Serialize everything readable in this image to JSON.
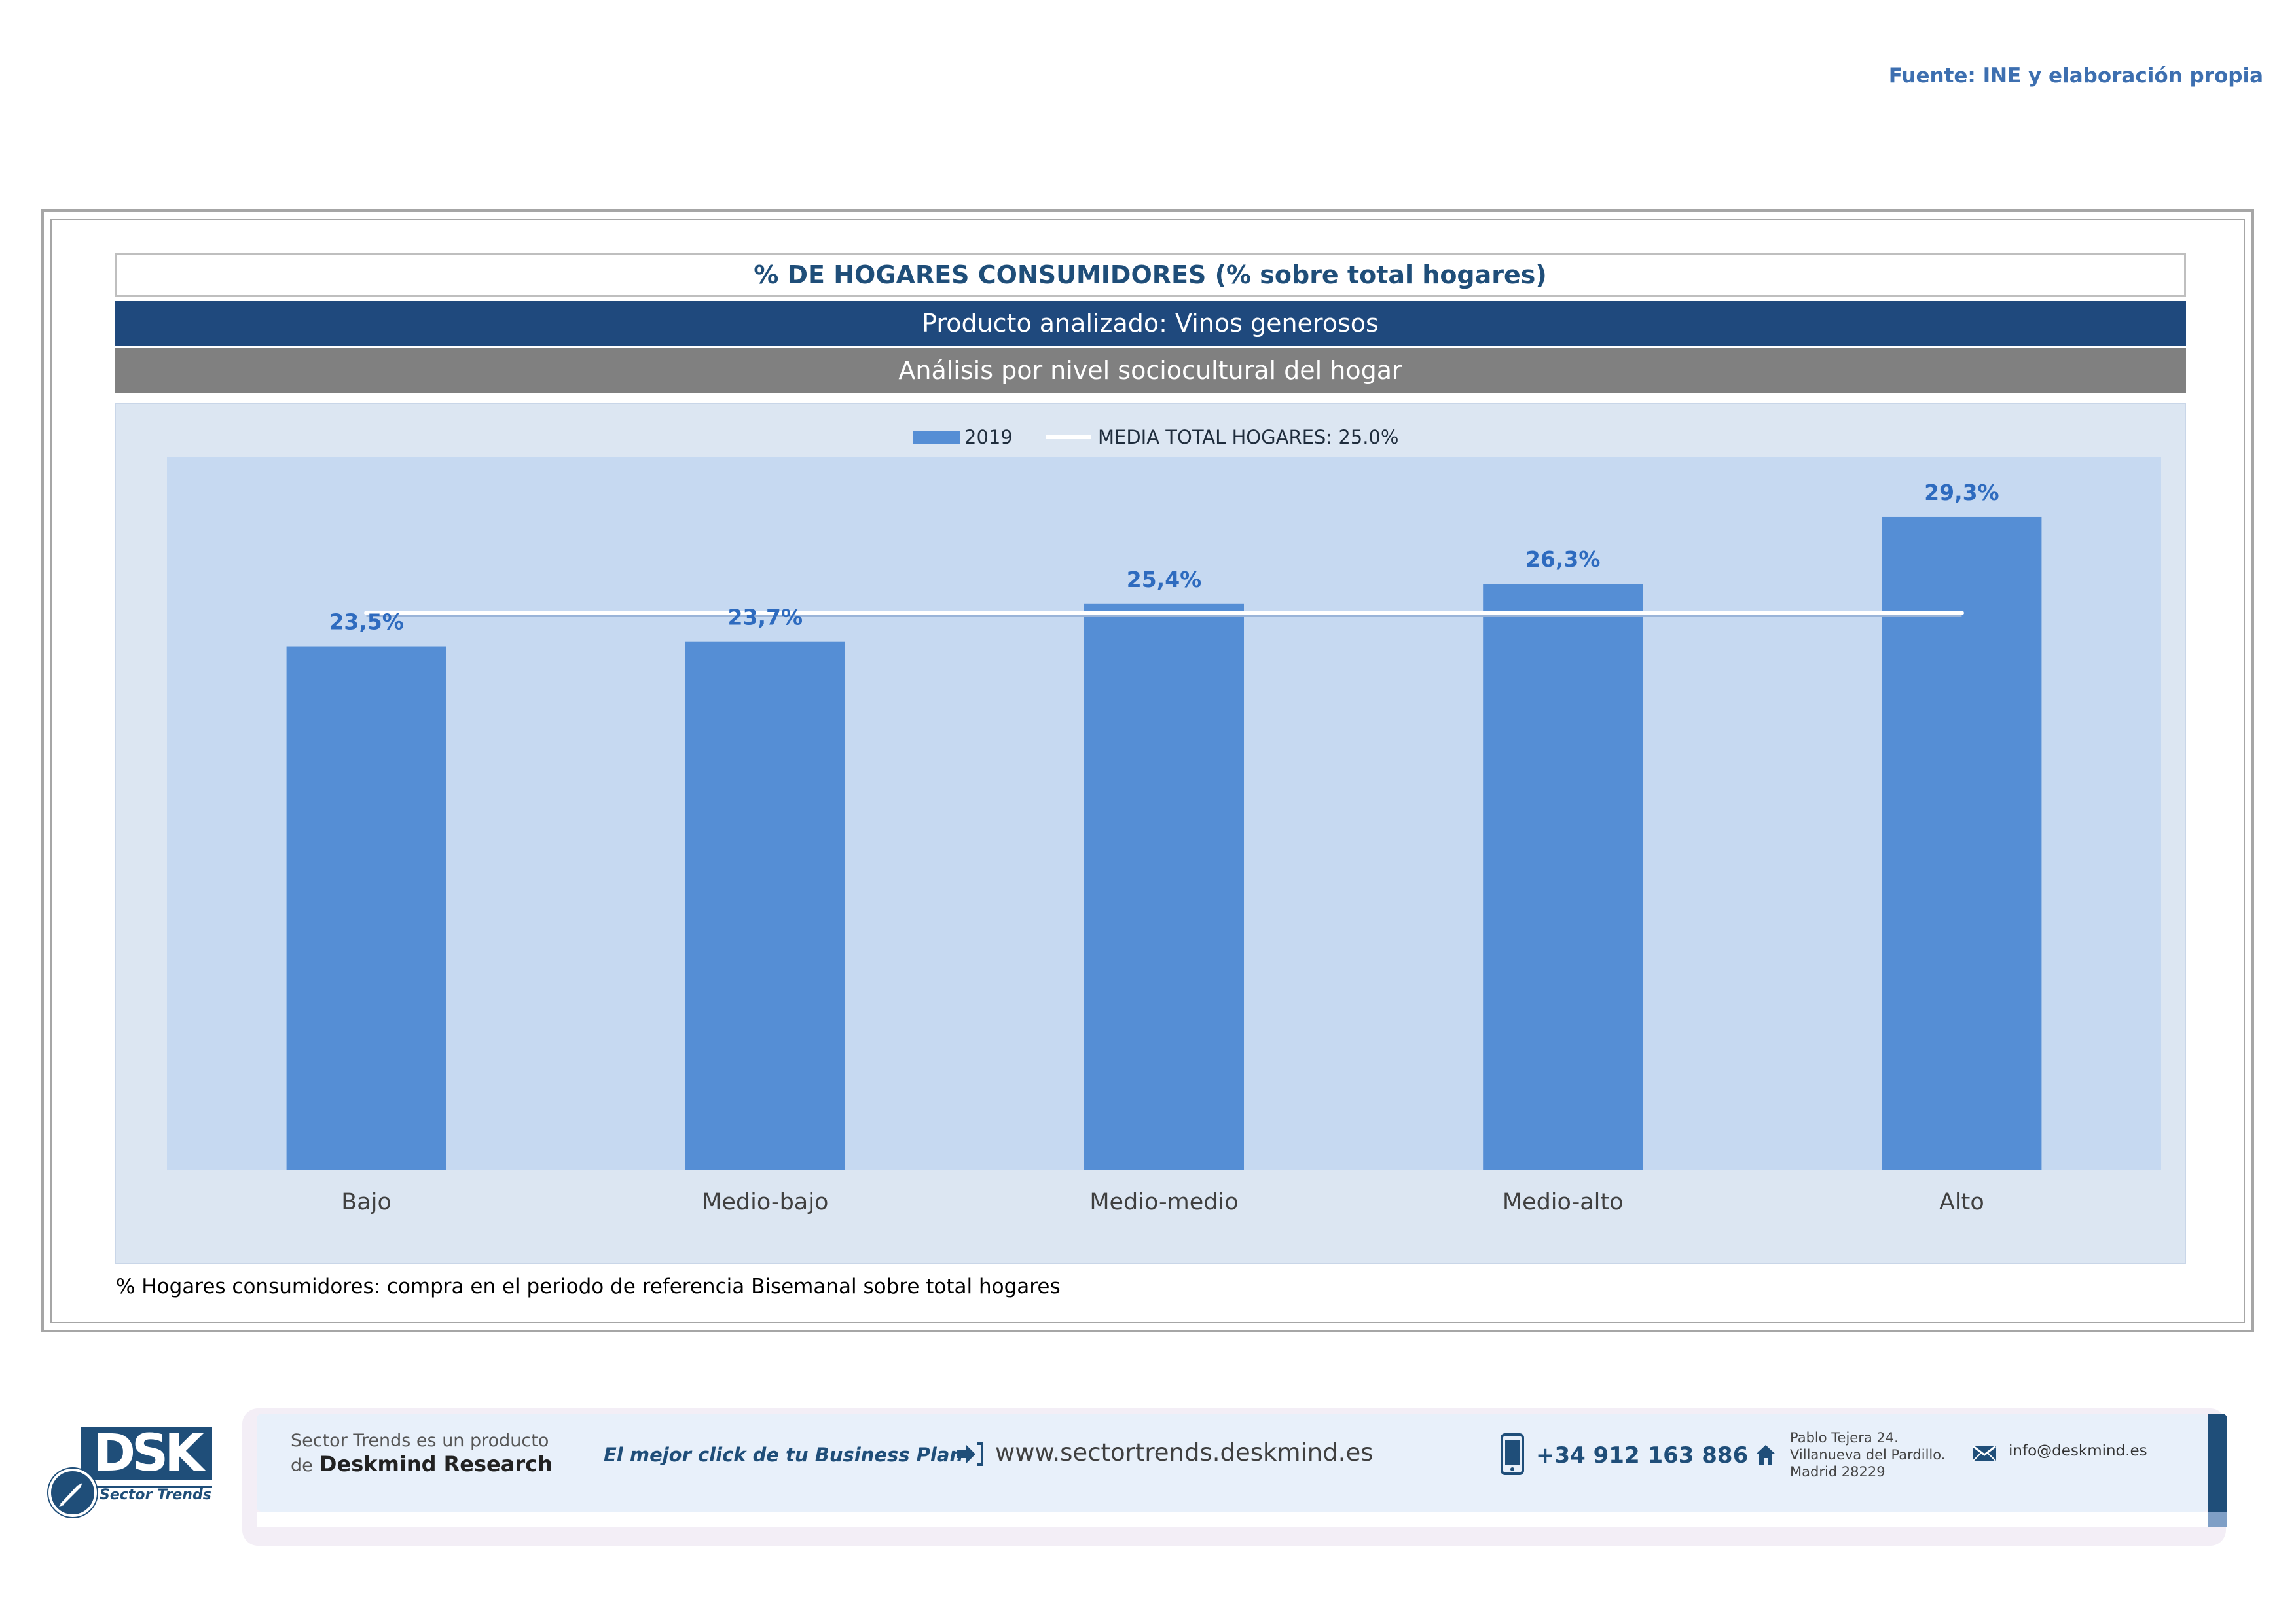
{
  "source": "Fuente: INE y elaboración propia",
  "header": {
    "title": "% DE HOGARES CONSUMIDORES (% sobre total hogares)",
    "product": "Producto analizado: Vinos generosos",
    "analysis": "Análisis por nivel sociocultural del hogar"
  },
  "footnote": "% Hogares consumidores: compra en el periodo de referencia Bisemanal sobre total hogares",
  "colors": {
    "bar": "#558ed5",
    "average_line": "#ffffff",
    "plot_background": "#c6d9f1",
    "panel_background": "#dce6f2",
    "value_label": "#2e6bbf",
    "header_dark": "#1f497d",
    "header_gray": "#808080"
  },
  "chart_data": {
    "type": "bar",
    "title": "",
    "categories": [
      "Bajo",
      "Medio-bajo",
      "Medio-medio",
      "Medio-alto",
      "Alto"
    ],
    "series": [
      {
        "name": "2019",
        "values": [
          23.5,
          23.7,
          25.4,
          26.3,
          29.3
        ],
        "labels": [
          "23,5%",
          "23,7%",
          "25,4%",
          "26,3%",
          "29,3%"
        ]
      }
    ],
    "reference_line": {
      "name": "MEDIA TOTAL  HOGARES:  25.0%",
      "value": 25.0
    },
    "legend": {
      "position": "top-center",
      "items": [
        "2019",
        "MEDIA TOTAL  HOGARES:  25.0%"
      ]
    },
    "xlabel": "",
    "ylabel": "",
    "ylim": [
      0,
      32
    ],
    "grid": false
  },
  "footer": {
    "logo_text": "DSK",
    "logo_subtitle": "Sector Trends",
    "intro_line1": "Sector Trends es un producto",
    "intro_de": "de",
    "intro_brand": "Deskmind Research",
    "slogan": "El mejor click de tu Business Plan",
    "website": "www.sectortrends.deskmind.es",
    "phone": "+34 912 163 886",
    "address_line1": "Pablo Tejera 24.",
    "address_line2": "Villanueva del Pardillo.",
    "address_line3": "Madrid 28229",
    "email": "info@deskmind.es",
    "icons": [
      "arrow-in-icon",
      "phone-icon",
      "home-icon",
      "mail-icon"
    ]
  }
}
